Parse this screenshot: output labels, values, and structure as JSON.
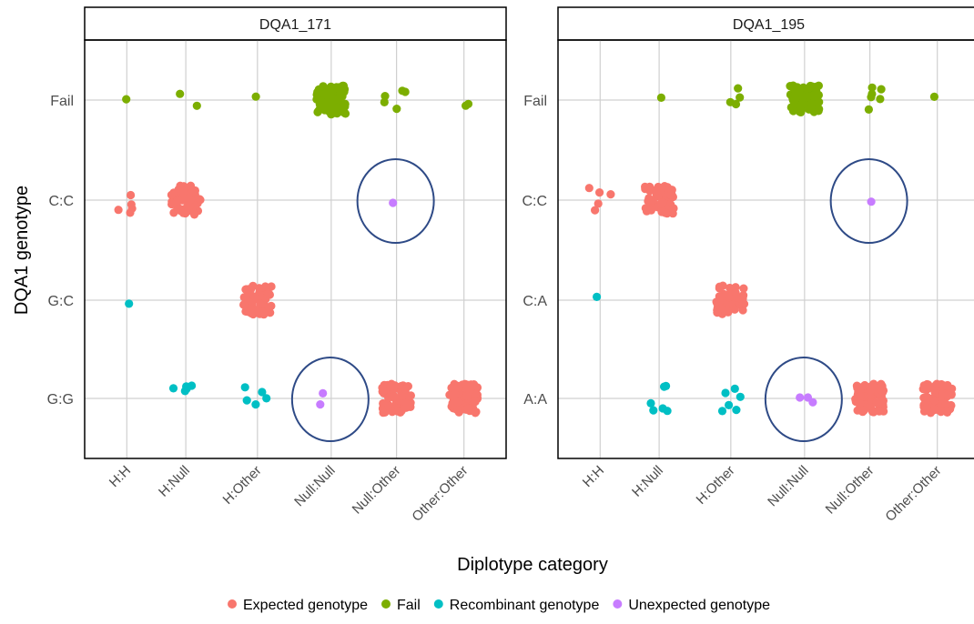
{
  "chart_data": {
    "type": "scatter",
    "xlabel": "Diplotype category",
    "ylabel": "DQA1 genotype",
    "categories": [
      "H:H",
      "H:Null",
      "H:Other",
      "Null:Null",
      "Null:Other",
      "Other:Other"
    ],
    "grid": true,
    "legend_position": "bottom",
    "legend": [
      {
        "label": "Expected genotype",
        "color": "#F8766D"
      },
      {
        "label": "Fail",
        "color": "#7CAE00"
      },
      {
        "label": "Recombinant genotype",
        "color": "#00BFC4"
      },
      {
        "label": "Unexpected genotype",
        "color": "#C77CFF"
      }
    ],
    "panels": [
      {
        "title": "DQA1_171",
        "y_categories": [
          "G:G",
          "G:C",
          "C:C",
          "Fail"
        ],
        "points": [
          {
            "x": "H:H",
            "y": "C:C",
            "group": "Expected genotype",
            "count": 5
          },
          {
            "x": "H:Null",
            "y": "C:C",
            "group": "Expected genotype",
            "count": 60
          },
          {
            "x": "H:Other",
            "y": "G:C",
            "group": "Expected genotype",
            "count": 60
          },
          {
            "x": "Null:Other",
            "y": "G:G",
            "group": "Expected genotype",
            "count": 80
          },
          {
            "x": "Other:Other",
            "y": "G:G",
            "group": "Expected genotype",
            "count": 80
          },
          {
            "x": "H:H",
            "y": "Fail",
            "group": "Fail",
            "count": 1
          },
          {
            "x": "H:Null",
            "y": "Fail",
            "group": "Fail",
            "count": 2
          },
          {
            "x": "H:Other",
            "y": "Fail",
            "group": "Fail",
            "count": 1
          },
          {
            "x": "Null:Null",
            "y": "Fail",
            "group": "Fail",
            "count": 90
          },
          {
            "x": "Null:Other",
            "y": "Fail",
            "group": "Fail",
            "count": 5
          },
          {
            "x": "Other:Other",
            "y": "Fail",
            "group": "Fail",
            "count": 2
          },
          {
            "x": "H:H",
            "y": "G:C",
            "group": "Recombinant genotype",
            "count": 1
          },
          {
            "x": "H:Null",
            "y": "G:G",
            "group": "Recombinant genotype",
            "count": 5
          },
          {
            "x": "H:Other",
            "y": "G:G",
            "group": "Recombinant genotype",
            "count": 5
          },
          {
            "x": "Null:Null",
            "y": "G:G",
            "group": "Unexpected genotype",
            "count": 2
          },
          {
            "x": "Null:Other",
            "y": "C:C",
            "group": "Unexpected genotype",
            "count": 1
          }
        ],
        "highlights": [
          {
            "x": "Null:Other",
            "y": "C:C"
          },
          {
            "x": "Null:Null",
            "y": "G:G"
          }
        ]
      },
      {
        "title": "DQA1_195",
        "y_categories": [
          "A:A",
          "C:A",
          "C:C",
          "Fail"
        ],
        "points": [
          {
            "x": "H:H",
            "y": "C:C",
            "group": "Expected genotype",
            "count": 5
          },
          {
            "x": "H:Null",
            "y": "C:C",
            "group": "Expected genotype",
            "count": 60
          },
          {
            "x": "H:Other",
            "y": "C:A",
            "group": "Expected genotype",
            "count": 60
          },
          {
            "x": "Null:Other",
            "y": "A:A",
            "group": "Expected genotype",
            "count": 80
          },
          {
            "x": "Other:Other",
            "y": "A:A",
            "group": "Expected genotype",
            "count": 80
          },
          {
            "x": "H:Null",
            "y": "Fail",
            "group": "Fail",
            "count": 1
          },
          {
            "x": "H:Other",
            "y": "Fail",
            "group": "Fail",
            "count": 4
          },
          {
            "x": "Null:Null",
            "y": "Fail",
            "group": "Fail",
            "count": 90
          },
          {
            "x": "Null:Other",
            "y": "Fail",
            "group": "Fail",
            "count": 6
          },
          {
            "x": "Other:Other",
            "y": "Fail",
            "group": "Fail",
            "count": 1
          },
          {
            "x": "H:H",
            "y": "C:A",
            "group": "Recombinant genotype",
            "count": 1
          },
          {
            "x": "H:Null",
            "y": "A:A",
            "group": "Recombinant genotype",
            "count": 6
          },
          {
            "x": "H:Other",
            "y": "A:A",
            "group": "Recombinant genotype",
            "count": 6
          },
          {
            "x": "Null:Null",
            "y": "A:A",
            "group": "Unexpected genotype",
            "count": 3
          },
          {
            "x": "Null:Other",
            "y": "C:C",
            "group": "Unexpected genotype",
            "count": 1
          }
        ],
        "highlights": [
          {
            "x": "Null:Other",
            "y": "C:C"
          },
          {
            "x": "Null:Null",
            "y": "A:A"
          }
        ]
      }
    ]
  }
}
